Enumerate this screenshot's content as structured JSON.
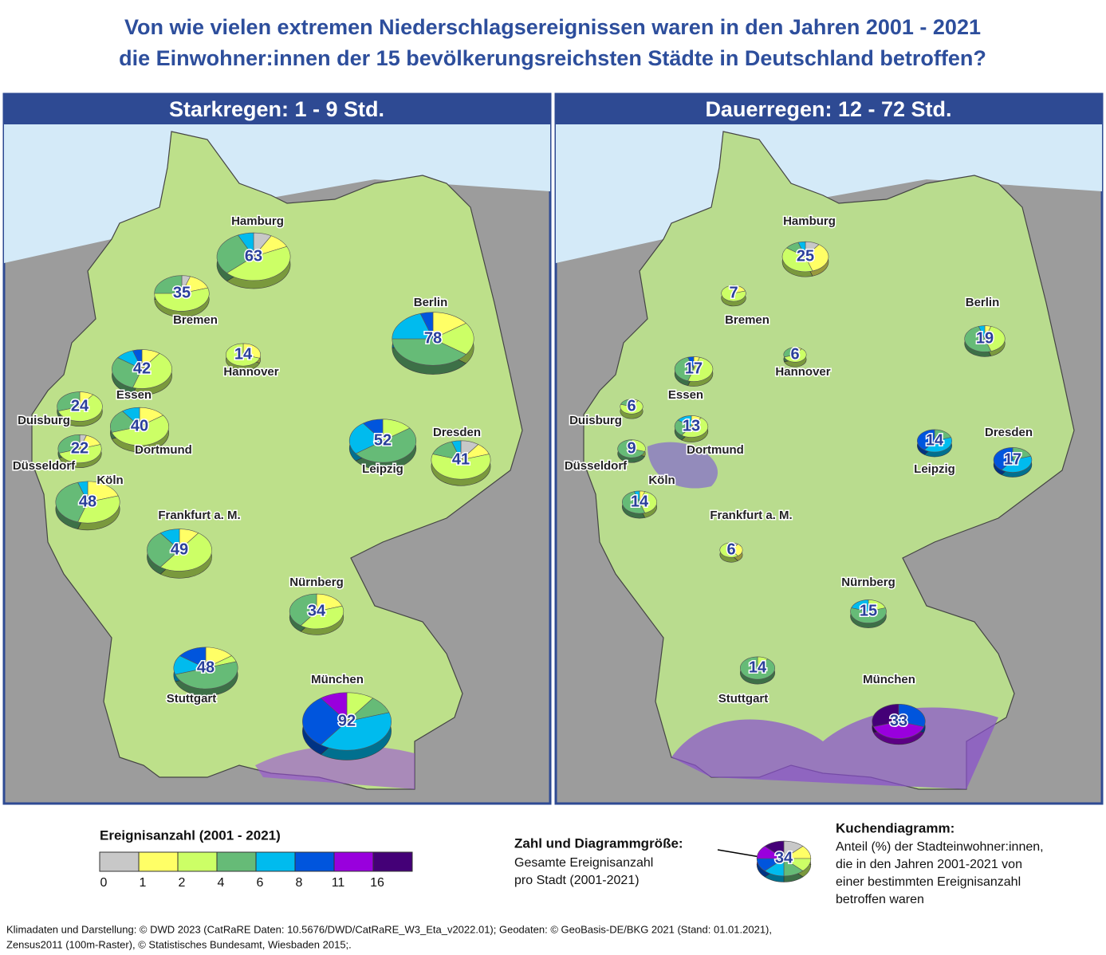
{
  "title": [
    "Von wie vielen extremen Niederschlagsereignissen waren in den Jahren 2001 - 2021",
    "die Einwohner:innen der 15 bevölkerungsreichsten Städte in Deutschland betroffen?"
  ],
  "maps": [
    {
      "title": "Starkregen: 1 - 9 Std.",
      "cities": [
        {
          "name": "Hamburg",
          "total": 63,
          "shares": [
            8,
            10,
            45,
            30,
            7,
            0,
            0,
            0
          ]
        },
        {
          "name": "Bremen",
          "total": 35,
          "shares": [
            5,
            15,
            55,
            25,
            0,
            0,
            0,
            0
          ]
        },
        {
          "name": "Berlin",
          "total": 78,
          "shares": [
            0,
            15,
            20,
            40,
            20,
            5,
            0,
            0
          ]
        },
        {
          "name": "Hannover",
          "total": 14,
          "shares": [
            0,
            30,
            70,
            0,
            0,
            0,
            0,
            0
          ]
        },
        {
          "name": "Essen",
          "total": 42,
          "shares": [
            0,
            10,
            45,
            30,
            10,
            5,
            0,
            0
          ]
        },
        {
          "name": "Duisburg",
          "total": 24,
          "shares": [
            0,
            10,
            60,
            30,
            0,
            0,
            0,
            0
          ]
        },
        {
          "name": "Dortmund",
          "total": 40,
          "shares": [
            0,
            15,
            55,
            20,
            10,
            0,
            0,
            0
          ]
        },
        {
          "name": "Düsseldorf",
          "total": 22,
          "shares": [
            5,
            15,
            50,
            30,
            0,
            0,
            0,
            0
          ]
        },
        {
          "name": "Leipzig",
          "total": 52,
          "shares": [
            0,
            0,
            15,
            50,
            25,
            10,
            0,
            0
          ]
        },
        {
          "name": "Dresden",
          "total": 41,
          "shares": [
            10,
            10,
            60,
            15,
            5,
            0,
            0,
            0
          ]
        },
        {
          "name": "Köln",
          "total": 48,
          "shares": [
            0,
            20,
            35,
            40,
            5,
            0,
            0,
            0
          ]
        },
        {
          "name": "Frankfurt a. M.",
          "total": 49,
          "shares": [
            0,
            10,
            50,
            30,
            10,
            0,
            0,
            0
          ]
        },
        {
          "name": "Nürnberg",
          "total": 34,
          "shares": [
            0,
            20,
            40,
            40,
            0,
            0,
            0,
            0
          ]
        },
        {
          "name": "Stuttgart",
          "total": 48,
          "shares": [
            0,
            15,
            5,
            50,
            15,
            15,
            0,
            0
          ]
        },
        {
          "name": "München",
          "total": 92,
          "shares": [
            0,
            0,
            10,
            10,
            40,
            30,
            10,
            0
          ]
        }
      ]
    },
    {
      "title": "Dauerregen: 12 - 72 Std.",
      "cities": [
        {
          "name": "Hamburg",
          "total": 25,
          "shares": [
            10,
            35,
            40,
            10,
            5,
            0,
            0,
            0
          ]
        },
        {
          "name": "Bremen",
          "total": 7,
          "shares": [
            0,
            20,
            80,
            0,
            0,
            0,
            0,
            0
          ]
        },
        {
          "name": "Berlin",
          "total": 19,
          "shares": [
            0,
            5,
            40,
            50,
            5,
            0,
            0,
            0
          ]
        },
        {
          "name": "Hannover",
          "total": 6,
          "shares": [
            0,
            10,
            60,
            30,
            0,
            0,
            0,
            0
          ]
        },
        {
          "name": "Essen",
          "total": 17,
          "shares": [
            0,
            5,
            50,
            40,
            0,
            5,
            0,
            0
          ]
        },
        {
          "name": "Duisburg",
          "total": 6,
          "shares": [
            0,
            10,
            70,
            20,
            0,
            0,
            0,
            0
          ]
        },
        {
          "name": "Dortmund",
          "total": 13,
          "shares": [
            0,
            10,
            50,
            25,
            15,
            0,
            0,
            0
          ]
        },
        {
          "name": "Düsseldorf",
          "total": 9,
          "shares": [
            0,
            0,
            30,
            70,
            0,
            0,
            0,
            0
          ]
        },
        {
          "name": "Leipzig",
          "total": 14,
          "shares": [
            0,
            0,
            0,
            20,
            40,
            40,
            0,
            0
          ]
        },
        {
          "name": "Dresden",
          "total": 17,
          "shares": [
            0,
            0,
            0,
            20,
            40,
            40,
            0,
            0
          ]
        },
        {
          "name": "Köln",
          "total": 14,
          "shares": [
            0,
            5,
            40,
            50,
            5,
            0,
            0,
            0
          ]
        },
        {
          "name": "Frankfurt a. M.",
          "total": 6,
          "shares": [
            10,
            30,
            60,
            0,
            0,
            0,
            0,
            0
          ]
        },
        {
          "name": "Nürnberg",
          "total": 15,
          "shares": [
            0,
            0,
            20,
            60,
            20,
            0,
            0,
            0
          ]
        },
        {
          "name": "Stuttgart",
          "total": 14,
          "shares": [
            0,
            0,
            10,
            90,
            0,
            0,
            0,
            0
          ]
        },
        {
          "name": "München",
          "total": 33,
          "shares": [
            0,
            0,
            0,
            0,
            0,
            30,
            40,
            30
          ]
        }
      ]
    }
  ],
  "legend": {
    "title": "Ereignisanzahl (2001 - 2021)",
    "ticks": [
      0,
      1,
      2,
      4,
      6,
      8,
      11,
      16
    ],
    "colors": [
      "#c8c8c8",
      "#ffff66",
      "#ccff66",
      "#66bb77",
      "#00bbee",
      "#0055dd",
      "#9900dd",
      "#440077"
    ],
    "size_title": "Zahl und Diagrammgröße:",
    "size_text": [
      "Gesamte Ereignisanzahl",
      "pro Stadt (2001-2021)"
    ],
    "example": {
      "total": 34,
      "shares": [
        12.5,
        12.5,
        12.5,
        12.5,
        12.5,
        12.5,
        12.5,
        12.5
      ]
    },
    "pie_title": "Kuchendiagramm:",
    "pie_text": [
      "Anteil (%) der Stadteinwohner:innen,",
      "die in den Jahren 2001-2021 von",
      "einer bestimmten Ereignisanzahl",
      "betroffen waren"
    ]
  },
  "footer": [
    "Klimadaten und Darstellung: © DWD 2023 (CatRaRE Daten: 10.5676/DWD/CatRaRE_W3_Eta_v2022.01); Geodaten: © GeoBasis-DE/BKG 2021 (Stand: 01.01.2021),",
    "Zensus2011 (100m-Raster), © Statistisches Bundesamt, Wiesbaden 2015;."
  ]
}
